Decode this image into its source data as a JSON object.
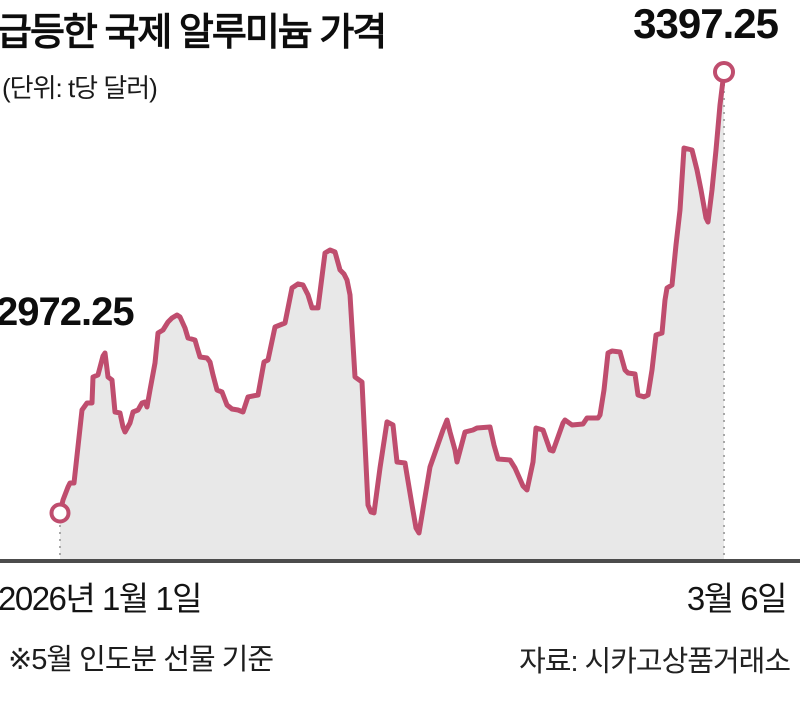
{
  "header": {
    "title": "급등한 국제 알루미늄 가격",
    "unit": "(단위: t당 달러)"
  },
  "labels": {
    "start_value": "2972.25",
    "end_value": "3397.25"
  },
  "axis": {
    "start": "2026년 1월 1일",
    "end": "3월 6일"
  },
  "footer": {
    "note": "※5월 인도분 선물 기준",
    "source": "자료: 시카고상품거래소"
  },
  "chart_data": {
    "type": "area",
    "title": "급등한 국제 알루미늄 가격",
    "unit_label": "(단위: t당 달러)",
    "xlabel": "",
    "ylabel": "t당 달러",
    "x_range_labels": [
      "2026년 1월 1일",
      "3월 6일"
    ],
    "start_value": 2972.25,
    "end_value": 3397.25,
    "ylim": [
      2890,
      3430
    ],
    "grid": false,
    "legend": "none",
    "markers": "open circles at first and last point with dotted drop lines",
    "colors": {
      "line": "#bf4d6e",
      "area": "#e8e8e8",
      "axis": "#4c4c4c",
      "guide": "#a8a8a8",
      "marker_fill": "#ffffff"
    },
    "series": [
      {
        "name": "알루미늄 5월 인도분 선물 가격",
        "points": [
          [
            0,
            2972.25
          ],
          [
            0.0045,
            2984.8
          ],
          [
            0.012,
            2997.3
          ],
          [
            0.0151,
            3001.2
          ],
          [
            0.0211,
            3001.2
          ],
          [
            0.0331,
            3071.5
          ],
          [
            0.0407,
            3078.3
          ],
          [
            0.0482,
            3078.3
          ],
          [
            0.0497,
            3103.3
          ],
          [
            0.0572,
            3105.3
          ],
          [
            0.0648,
            3123.6
          ],
          [
            0.0678,
            3126.4
          ],
          [
            0.0723,
            3103.3
          ],
          [
            0.0783,
            3100.4
          ],
          [
            0.0828,
            3069.6
          ],
          [
            0.0904,
            3068.6
          ],
          [
            0.0949,
            3055.1
          ],
          [
            0.0979,
            3050.3
          ],
          [
            0.1054,
            3059.0
          ],
          [
            0.1099,
            3069.6
          ],
          [
            0.1175,
            3071.5
          ],
          [
            0.1235,
            3078.3
          ],
          [
            0.128,
            3079.2
          ],
          [
            0.131,
            3074.4
          ],
          [
            0.1355,
            3090.8
          ],
          [
            0.1431,
            3116.8
          ],
          [
            0.1476,
            3145.7
          ],
          [
            0.1551,
            3148.6
          ],
          [
            0.1627,
            3156.3
          ],
          [
            0.1687,
            3160.2
          ],
          [
            0.1762,
            3163.1
          ],
          [
            0.1807,
            3161.1
          ],
          [
            0.1883,
            3150.5
          ],
          [
            0.1928,
            3140.9
          ],
          [
            0.2033,
            3139.0
          ],
          [
            0.2063,
            3132.2
          ],
          [
            0.2108,
            3122.6
          ],
          [
            0.2214,
            3121.6
          ],
          [
            0.2259,
            3117.8
          ],
          [
            0.2304,
            3105.3
          ],
          [
            0.2364,
            3090.8
          ],
          [
            0.244,
            3088.9
          ],
          [
            0.2515,
            3076.3
          ],
          [
            0.259,
            3072.5
          ],
          [
            0.2681,
            3071.5
          ],
          [
            0.2756,
            3069.6
          ],
          [
            0.2831,
            3084.1
          ],
          [
            0.2982,
            3086.0
          ],
          [
            0.3042,
            3107.2
          ],
          [
            0.3072,
            3117.8
          ],
          [
            0.3133,
            3119.7
          ],
          [
            0.3238,
            3151.5
          ],
          [
            0.3389,
            3155.4
          ],
          [
            0.3494,
            3189.1
          ],
          [
            0.3584,
            3193.0
          ],
          [
            0.366,
            3192.0
          ],
          [
            0.3735,
            3182.4
          ],
          [
            0.3795,
            3169.9
          ],
          [
            0.3886,
            3169.9
          ],
          [
            0.3991,
            3222.8
          ],
          [
            0.4066,
            3225.7
          ],
          [
            0.4142,
            3223.8
          ],
          [
            0.4217,
            3206.5
          ],
          [
            0.4277,
            3202.6
          ],
          [
            0.4322,
            3196.8
          ],
          [
            0.4367,
            3182.4
          ],
          [
            0.4443,
            3103.3
          ],
          [
            0.4548,
            3098.5
          ],
          [
            0.4639,
            2980.0
          ],
          [
            0.4684,
            2973.2
          ],
          [
            0.4729,
            2972.3
          ],
          [
            0.4819,
            3015.6
          ],
          [
            0.4925,
            3060.0
          ],
          [
            0.5015,
            3057.1
          ],
          [
            0.5075,
            3021.4
          ],
          [
            0.5196,
            3020.4
          ],
          [
            0.5301,
            2980.0
          ],
          [
            0.5361,
            2957.8
          ],
          [
            0.5407,
            2953.0
          ],
          [
            0.5497,
            2987.7
          ],
          [
            0.5572,
            3016.6
          ],
          [
            0.5768,
            3052.2
          ],
          [
            0.5828,
            3061.9
          ],
          [
            0.5873,
            3050.3
          ],
          [
            0.5949,
            3033.0
          ],
          [
            0.5979,
            3021.4
          ],
          [
            0.6099,
            3050.3
          ],
          [
            0.622,
            3052.2
          ],
          [
            0.628,
            3054.2
          ],
          [
            0.6476,
            3055.1
          ],
          [
            0.6536,
            3037.8
          ],
          [
            0.6596,
            3024.3
          ],
          [
            0.6777,
            3023.3
          ],
          [
            0.6852,
            3015.6
          ],
          [
            0.6973,
            2998.3
          ],
          [
            0.7033,
            2994.4
          ],
          [
            0.7123,
            3021.4
          ],
          [
            0.7169,
            3054.2
          ],
          [
            0.7274,
            3052.2
          ],
          [
            0.738,
            3033.0
          ],
          [
            0.7425,
            3032.0
          ],
          [
            0.7575,
            3059.0
          ],
          [
            0.7605,
            3061.9
          ],
          [
            0.7711,
            3057.1
          ],
          [
            0.7877,
            3058.0
          ],
          [
            0.7937,
            3063.8
          ],
          [
            0.8102,
            3063.8
          ],
          [
            0.8133,
            3066.7
          ],
          [
            0.8193,
            3090.8
          ],
          [
            0.8253,
            3126.4
          ],
          [
            0.8313,
            3128.4
          ],
          [
            0.8434,
            3127.4
          ],
          [
            0.8509,
            3110.1
          ],
          [
            0.8554,
            3107.2
          ],
          [
            0.866,
            3106.2
          ],
          [
            0.8705,
            3086.0
          ],
          [
            0.8795,
            3084.1
          ],
          [
            0.8855,
            3086.0
          ],
          [
            0.8916,
            3110.1
          ],
          [
            0.8976,
            3143.8
          ],
          [
            0.9066,
            3145.7
          ],
          [
            0.9111,
            3177.5
          ],
          [
            0.9142,
            3189.1
          ],
          [
            0.9217,
            3192.0
          ],
          [
            0.9277,
            3230.5
          ],
          [
            0.9337,
            3264.3
          ],
          [
            0.9398,
            3324.0
          ],
          [
            0.9518,
            3322.1
          ],
          [
            0.9593,
            3302.8
          ],
          [
            0.9654,
            3283.5
          ],
          [
            0.9729,
            3256.6
          ],
          [
            0.9759,
            3252.7
          ],
          [
            0.9819,
            3283.5
          ],
          [
            0.988,
            3322.1
          ],
          [
            0.994,
            3365.5
          ],
          [
            1,
            3397.25
          ]
        ]
      }
    ]
  }
}
